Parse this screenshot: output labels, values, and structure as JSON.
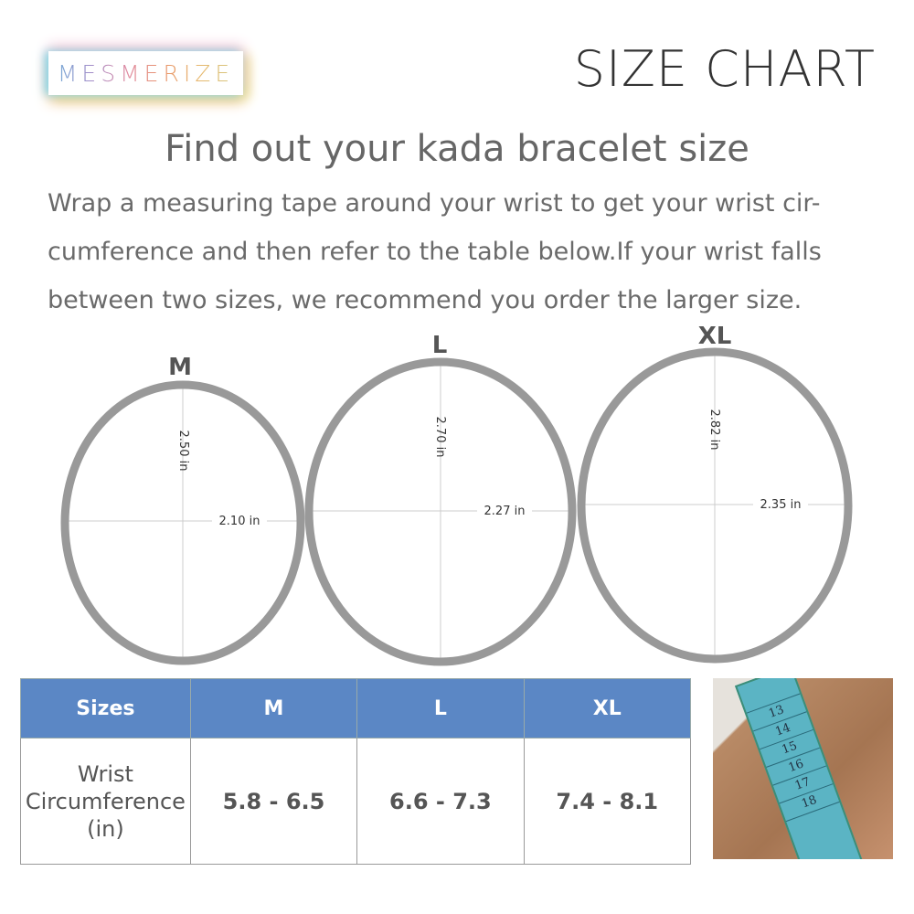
{
  "brand": {
    "logo_text": "MESMERIZE"
  },
  "header": {
    "title": "SIZE CHART"
  },
  "main": {
    "heading": "Find out your kada bracelet size",
    "instructions": "Wrap a measuring tape around your wrist to get your wrist cir-cumference and then refer to the table below.If your wrist falls between two sizes, we recommend you order the larger size."
  },
  "rings": [
    {
      "size": "M",
      "height_label": "2.50 in",
      "width_label": "2.10 in"
    },
    {
      "size": "L",
      "height_label": "2.70 in",
      "width_label": "2.27 in"
    },
    {
      "size": "XL",
      "height_label": "2.82 in",
      "width_label": "2.35 in"
    }
  ],
  "table": {
    "headers": [
      "Sizes",
      "M",
      "L",
      "XL"
    ],
    "row_label_lines": [
      "Wrist",
      "Circumference",
      "(in)"
    ],
    "values": [
      "5.8 - 6.5",
      "6.6 - 7.3",
      "7.4 - 8.1"
    ]
  },
  "photo": {
    "tape_numbers": [
      "13",
      "14",
      "15",
      "16",
      "17",
      "18"
    ]
  },
  "colors": {
    "table_header": "#5b87c5",
    "ring": "#999999"
  }
}
